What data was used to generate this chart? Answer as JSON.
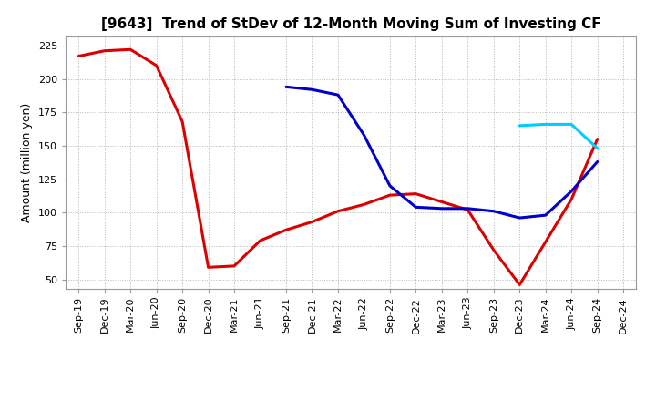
{
  "title": "[9643]  Trend of StDev of 12-Month Moving Sum of Investing CF",
  "ylabel": "Amount (million yen)",
  "background_color": "#ffffff",
  "grid_color": "#b0b0b0",
  "ylim": [
    43,
    232
  ],
  "yticks": [
    50,
    75,
    100,
    125,
    150,
    175,
    200,
    225
  ],
  "x_labels": [
    "Sep-19",
    "Dec-19",
    "Mar-20",
    "Jun-20",
    "Sep-20",
    "Dec-20",
    "Mar-21",
    "Jun-21",
    "Sep-21",
    "Dec-21",
    "Mar-22",
    "Jun-22",
    "Sep-22",
    "Dec-22",
    "Mar-23",
    "Jun-23",
    "Sep-23",
    "Dec-23",
    "Mar-24",
    "Jun-24",
    "Sep-24",
    "Dec-24"
  ],
  "series_3y": {
    "color": "#dd0000",
    "data": [
      [
        "Sep-19",
        217
      ],
      [
        "Dec-19",
        221
      ],
      [
        "Mar-20",
        222
      ],
      [
        "Jun-20",
        210
      ],
      [
        "Sep-20",
        168
      ],
      [
        "Dec-20",
        59
      ],
      [
        "Mar-21",
        60
      ],
      [
        "Jun-21",
        79
      ],
      [
        "Sep-21",
        87
      ],
      [
        "Dec-21",
        93
      ],
      [
        "Mar-22",
        101
      ],
      [
        "Jun-22",
        106
      ],
      [
        "Sep-22",
        113
      ],
      [
        "Dec-22",
        114
      ],
      [
        "Mar-23",
        108
      ],
      [
        "Jun-23",
        102
      ],
      [
        "Sep-23",
        72
      ],
      [
        "Dec-23",
        46
      ],
      [
        "Mar-24",
        78
      ],
      [
        "Jun-24",
        110
      ],
      [
        "Sep-24",
        155
      ],
      [
        "Dec-24",
        null
      ]
    ]
  },
  "series_5y": {
    "color": "#0000cc",
    "data": [
      [
        "Sep-19",
        null
      ],
      [
        "Dec-19",
        null
      ],
      [
        "Mar-20",
        null
      ],
      [
        "Jun-20",
        null
      ],
      [
        "Sep-20",
        null
      ],
      [
        "Dec-20",
        null
      ],
      [
        "Mar-21",
        null
      ],
      [
        "Jun-21",
        null
      ],
      [
        "Sep-21",
        194
      ],
      [
        "Dec-21",
        192
      ],
      [
        "Mar-22",
        188
      ],
      [
        "Jun-22",
        158
      ],
      [
        "Sep-22",
        120
      ],
      [
        "Dec-22",
        104
      ],
      [
        "Mar-23",
        103
      ],
      [
        "Jun-23",
        103
      ],
      [
        "Sep-23",
        101
      ],
      [
        "Dec-23",
        96
      ],
      [
        "Mar-24",
        98
      ],
      [
        "Jun-24",
        116
      ],
      [
        "Sep-24",
        138
      ],
      [
        "Dec-24",
        null
      ]
    ]
  },
  "series_7y": {
    "color": "#00ccff",
    "data": [
      [
        "Sep-19",
        null
      ],
      [
        "Dec-19",
        null
      ],
      [
        "Mar-20",
        null
      ],
      [
        "Jun-20",
        null
      ],
      [
        "Sep-20",
        null
      ],
      [
        "Dec-20",
        null
      ],
      [
        "Mar-21",
        null
      ],
      [
        "Jun-21",
        null
      ],
      [
        "Sep-21",
        null
      ],
      [
        "Dec-21",
        null
      ],
      [
        "Mar-22",
        null
      ],
      [
        "Jun-22",
        null
      ],
      [
        "Sep-22",
        null
      ],
      [
        "Dec-22",
        null
      ],
      [
        "Mar-23",
        null
      ],
      [
        "Jun-23",
        null
      ],
      [
        "Sep-23",
        null
      ],
      [
        "Dec-23",
        165
      ],
      [
        "Mar-24",
        166
      ],
      [
        "Jun-24",
        166
      ],
      [
        "Sep-24",
        148
      ],
      [
        "Dec-24",
        null
      ]
    ]
  },
  "series_10y": {
    "color": "#007700",
    "data": [
      [
        "Sep-19",
        null
      ],
      [
        "Dec-19",
        null
      ],
      [
        "Mar-20",
        null
      ],
      [
        "Jun-20",
        null
      ],
      [
        "Sep-20",
        null
      ],
      [
        "Dec-20",
        null
      ],
      [
        "Mar-21",
        null
      ],
      [
        "Jun-21",
        null
      ],
      [
        "Sep-21",
        null
      ],
      [
        "Dec-21",
        null
      ],
      [
        "Mar-22",
        null
      ],
      [
        "Jun-22",
        null
      ],
      [
        "Sep-22",
        null
      ],
      [
        "Dec-22",
        null
      ],
      [
        "Mar-23",
        null
      ],
      [
        "Jun-23",
        null
      ],
      [
        "Sep-23",
        null
      ],
      [
        "Dec-23",
        null
      ],
      [
        "Mar-24",
        null
      ],
      [
        "Jun-24",
        null
      ],
      [
        "Sep-24",
        null
      ],
      [
        "Dec-24",
        null
      ]
    ]
  },
  "linewidth": 2.2,
  "title_fontsize": 11,
  "ylabel_fontsize": 9,
  "tick_fontsize": 8
}
